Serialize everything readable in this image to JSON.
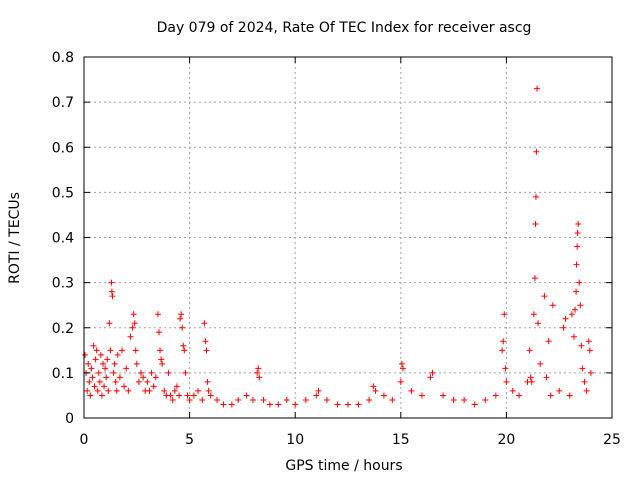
{
  "chart_data": {
    "type": "scatter",
    "title": "Day 079 of 2024, Rate Of TEC Index for receiver ascg",
    "xlabel": "GPS time / hours",
    "ylabel": "ROTI / TECUs",
    "xlim": [
      0,
      25
    ],
    "ylim": [
      0,
      0.8
    ],
    "xticks": [
      0,
      5,
      10,
      15,
      20,
      25
    ],
    "yticks": [
      0,
      0.1,
      0.2,
      0.3,
      0.4,
      0.5,
      0.6,
      0.7,
      0.8
    ],
    "xtick_labels": [
      "0",
      "5",
      "10",
      "15",
      "20",
      "25"
    ],
    "ytick_labels": [
      "0",
      "0.1",
      "0.2",
      "0.3",
      "0.4",
      "0.5",
      "0.6",
      "0.7",
      "0.8"
    ],
    "grid": true,
    "marker": "+",
    "series_color": "#ff0000",
    "series": [
      {
        "name": "ROTI",
        "points": [
          [
            0.05,
            0.14
          ],
          [
            0.1,
            0.1
          ],
          [
            0.15,
            0.06
          ],
          [
            0.2,
            0.12
          ],
          [
            0.25,
            0.08
          ],
          [
            0.3,
            0.05
          ],
          [
            0.35,
            0.11
          ],
          [
            0.4,
            0.09
          ],
          [
            0.45,
            0.16
          ],
          [
            0.5,
            0.07
          ],
          [
            0.55,
            0.13
          ],
          [
            0.6,
            0.15
          ],
          [
            0.65,
            0.06
          ],
          [
            0.7,
            0.1
          ],
          [
            0.75,
            0.08
          ],
          [
            0.8,
            0.14
          ],
          [
            0.85,
            0.05
          ],
          [
            0.9,
            0.12
          ],
          [
            0.95,
            0.07
          ],
          [
            1.0,
            0.11
          ],
          [
            1.05,
            0.09
          ],
          [
            1.1,
            0.13
          ],
          [
            1.15,
            0.06
          ],
          [
            1.2,
            0.21
          ],
          [
            1.25,
            0.15
          ],
          [
            1.3,
            0.3
          ],
          [
            1.32,
            0.28
          ],
          [
            1.35,
            0.27
          ],
          [
            1.4,
            0.1
          ],
          [
            1.45,
            0.12
          ],
          [
            1.5,
            0.08
          ],
          [
            1.55,
            0.06
          ],
          [
            1.6,
            0.14
          ],
          [
            1.7,
            0.09
          ],
          [
            1.8,
            0.15
          ],
          [
            1.9,
            0.07
          ],
          [
            2.0,
            0.11
          ],
          [
            2.1,
            0.06
          ],
          [
            2.2,
            0.18
          ],
          [
            2.3,
            0.2
          ],
          [
            2.35,
            0.23
          ],
          [
            2.4,
            0.21
          ],
          [
            2.45,
            0.15
          ],
          [
            2.5,
            0.12
          ],
          [
            2.6,
            0.08
          ],
          [
            2.7,
            0.1
          ],
          [
            2.8,
            0.09
          ],
          [
            2.9,
            0.06
          ],
          [
            3.0,
            0.08
          ],
          [
            3.1,
            0.06
          ],
          [
            3.2,
            0.1
          ],
          [
            3.3,
            0.07
          ],
          [
            3.4,
            0.09
          ],
          [
            3.5,
            0.23
          ],
          [
            3.55,
            0.19
          ],
          [
            3.6,
            0.15
          ],
          [
            3.65,
            0.13
          ],
          [
            3.7,
            0.12
          ],
          [
            3.8,
            0.06
          ],
          [
            3.9,
            0.05
          ],
          [
            4.0,
            0.1
          ],
          [
            4.1,
            0.05
          ],
          [
            4.2,
            0.04
          ],
          [
            4.3,
            0.06
          ],
          [
            4.4,
            0.07
          ],
          [
            4.5,
            0.05
          ],
          [
            4.55,
            0.22
          ],
          [
            4.6,
            0.23
          ],
          [
            4.65,
            0.2
          ],
          [
            4.7,
            0.16
          ],
          [
            4.75,
            0.15
          ],
          [
            4.8,
            0.1
          ],
          [
            4.9,
            0.05
          ],
          [
            5.0,
            0.04
          ],
          [
            5.2,
            0.05
          ],
          [
            5.4,
            0.06
          ],
          [
            5.6,
            0.04
          ],
          [
            5.7,
            0.21
          ],
          [
            5.75,
            0.17
          ],
          [
            5.8,
            0.15
          ],
          [
            5.85,
            0.08
          ],
          [
            5.9,
            0.06
          ],
          [
            6.0,
            0.05
          ],
          [
            6.3,
            0.04
          ],
          [
            6.6,
            0.03
          ],
          [
            7.0,
            0.03
          ],
          [
            7.3,
            0.04
          ],
          [
            7.7,
            0.05
          ],
          [
            8.0,
            0.04
          ],
          [
            8.2,
            0.1
          ],
          [
            8.25,
            0.11
          ],
          [
            8.3,
            0.09
          ],
          [
            8.5,
            0.04
          ],
          [
            8.8,
            0.03
          ],
          [
            9.2,
            0.03
          ],
          [
            9.6,
            0.04
          ],
          [
            10.0,
            0.03
          ],
          [
            10.5,
            0.04
          ],
          [
            11.0,
            0.05
          ],
          [
            11.1,
            0.06
          ],
          [
            11.5,
            0.04
          ],
          [
            12.0,
            0.03
          ],
          [
            12.5,
            0.03
          ],
          [
            13.0,
            0.03
          ],
          [
            13.5,
            0.04
          ],
          [
            13.7,
            0.07
          ],
          [
            13.8,
            0.06
          ],
          [
            14.2,
            0.05
          ],
          [
            14.6,
            0.04
          ],
          [
            15.0,
            0.08
          ],
          [
            15.05,
            0.12
          ],
          [
            15.1,
            0.11
          ],
          [
            15.5,
            0.06
          ],
          [
            16.0,
            0.05
          ],
          [
            16.4,
            0.09
          ],
          [
            16.5,
            0.1
          ],
          [
            17.0,
            0.05
          ],
          [
            17.5,
            0.04
          ],
          [
            18.0,
            0.04
          ],
          [
            18.5,
            0.03
          ],
          [
            19.0,
            0.04
          ],
          [
            19.5,
            0.05
          ],
          [
            19.8,
            0.15
          ],
          [
            19.85,
            0.17
          ],
          [
            19.9,
            0.23
          ],
          [
            19.95,
            0.11
          ],
          [
            20.0,
            0.08
          ],
          [
            20.3,
            0.06
          ],
          [
            20.6,
            0.05
          ],
          [
            21.0,
            0.08
          ],
          [
            21.1,
            0.15
          ],
          [
            21.15,
            0.09
          ],
          [
            21.2,
            0.08
          ],
          [
            21.3,
            0.23
          ],
          [
            21.35,
            0.31
          ],
          [
            21.38,
            0.43
          ],
          [
            21.4,
            0.49
          ],
          [
            21.42,
            0.59
          ],
          [
            21.45,
            0.73
          ],
          [
            21.5,
            0.21
          ],
          [
            21.6,
            0.12
          ],
          [
            21.8,
            0.27
          ],
          [
            21.9,
            0.09
          ],
          [
            22.0,
            0.17
          ],
          [
            22.1,
            0.05
          ],
          [
            22.2,
            0.25
          ],
          [
            22.5,
            0.06
          ],
          [
            22.7,
            0.2
          ],
          [
            22.8,
            0.22
          ],
          [
            23.0,
            0.05
          ],
          [
            23.1,
            0.23
          ],
          [
            23.2,
            0.18
          ],
          [
            23.25,
            0.24
          ],
          [
            23.3,
            0.28
          ],
          [
            23.32,
            0.34
          ],
          [
            23.35,
            0.38
          ],
          [
            23.37,
            0.41
          ],
          [
            23.4,
            0.43
          ],
          [
            23.45,
            0.3
          ],
          [
            23.5,
            0.25
          ],
          [
            23.55,
            0.16
          ],
          [
            23.6,
            0.11
          ],
          [
            23.7,
            0.08
          ],
          [
            23.8,
            0.06
          ],
          [
            23.9,
            0.17
          ],
          [
            23.95,
            0.15
          ],
          [
            24.0,
            0.1
          ]
        ]
      }
    ]
  }
}
